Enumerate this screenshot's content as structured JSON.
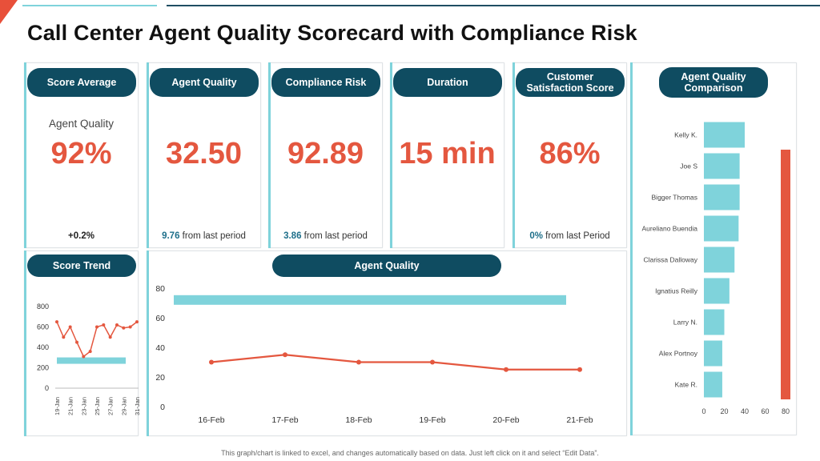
{
  "title": "Call Center Agent Quality Scorecard with Compliance Risk",
  "kpis": [
    {
      "label": "Score Average",
      "sub": "Agent Quality",
      "value": "92%",
      "change_num": "+0.2%",
      "change_text": ""
    },
    {
      "label": "Agent Quality",
      "sub": "",
      "value": "32.50",
      "change_num": "9.76",
      "change_text": " from last period"
    },
    {
      "label": "Compliance Risk",
      "sub": "",
      "value": "92.89",
      "change_num": "3.86",
      "change_text": " from last period"
    },
    {
      "label": "Duration",
      "sub": "",
      "value": "15 min",
      "change_num": "",
      "change_text": ""
    },
    {
      "label_line1": "Customer",
      "label_line2": "Satisfaction Score",
      "sub": "",
      "value": "86%",
      "change_num": "0%",
      "change_text": " from last Period"
    }
  ],
  "comparison_label_line1": "Agent Quality",
  "comparison_label_line2": "Comparison",
  "score_trend_label": "Score Trend",
  "agent_quality_chart_label": "Agent Quality",
  "footer": "This graph/chart is linked to excel, and changes automatically based on data. Just left click on it and select “Edit Data”.",
  "colors": {
    "navy": "#0f4c61",
    "teal": "#7fd3db",
    "red": "#e4573f"
  },
  "chart_data": [
    {
      "type": "bar",
      "name": "agent-quality-comparison",
      "orientation": "horizontal",
      "categories": [
        "Kelly K.",
        "Joe S",
        "Bigger Thomas",
        "Aureliano Buendia",
        "Clarissa Dalloway",
        "Ignatius Reilly",
        "Larry N.",
        "Alex Portnoy",
        "Kate R."
      ],
      "values": [
        40,
        35,
        35,
        34,
        30,
        25,
        20,
        18,
        18
      ],
      "target": 80,
      "xlim": [
        0,
        80
      ],
      "xticks": [
        0,
        20,
        40,
        60,
        80
      ]
    },
    {
      "type": "line",
      "name": "score-trend",
      "x": [
        "19-Jan",
        "20-Jan",
        "21-Jan",
        "22-Jan",
        "23-Jan",
        "24-Jan",
        "25-Jan",
        "26-Jan",
        "27-Jan",
        "28-Jan",
        "29-Jan",
        "30-Jan",
        "31-Jan"
      ],
      "xticks": [
        "19-Jan",
        "21-Jan",
        "23-Jan",
        "25-Jan",
        "27-Jan",
        "29-Jan",
        "31-Jan"
      ],
      "values": [
        650,
        500,
        600,
        450,
        310,
        360,
        600,
        620,
        500,
        620,
        590,
        600,
        650
      ],
      "target": 270,
      "ylim": [
        0,
        800
      ],
      "yticks": [
        0,
        200,
        400,
        600,
        800
      ]
    },
    {
      "type": "line",
      "name": "agent-quality",
      "x": [
        "16-Feb",
        "17-Feb",
        "18-Feb",
        "19-Feb",
        "20-Feb",
        "21-Feb"
      ],
      "values": [
        30,
        35,
        30,
        30,
        25,
        25
      ],
      "target": 72,
      "ylim": [
        0,
        80
      ],
      "yticks": [
        0,
        20,
        40,
        60,
        80
      ]
    }
  ]
}
